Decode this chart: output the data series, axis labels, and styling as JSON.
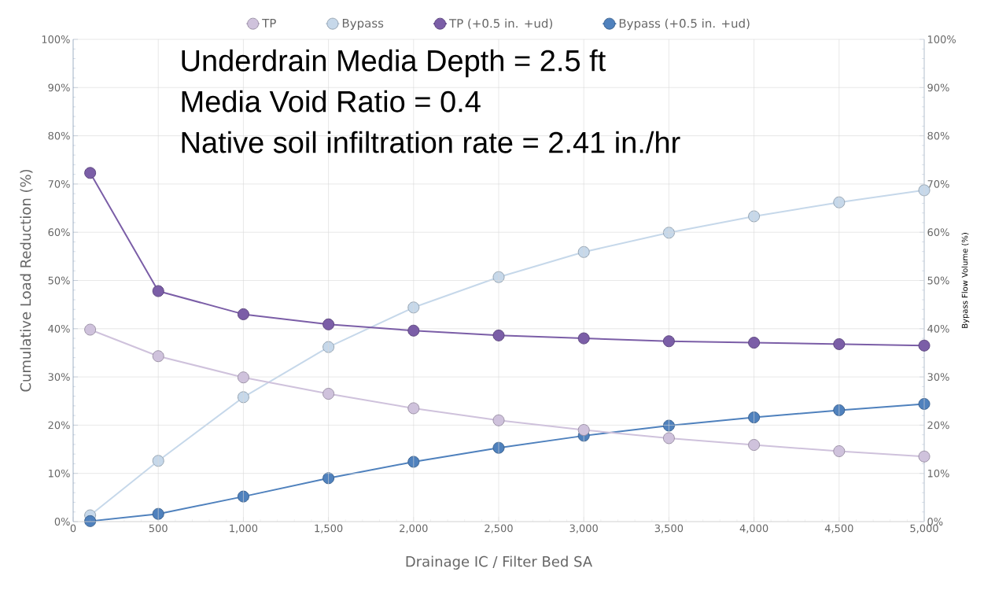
{
  "chart_data": {
    "type": "line",
    "xlabel": "Drainage IC / Filter Bed SA",
    "ylabel": "Cumulative Load Reduction (%)",
    "y2label": "Bypass Flow Volume (%)",
    "x": [
      100,
      500,
      1000,
      1500,
      2000,
      2500,
      3000,
      3500,
      4000,
      4500,
      5000
    ],
    "series": [
      {
        "name": "TP",
        "color": "#cfc2dc",
        "values": [
          39.8,
          34.3,
          29.9,
          26.5,
          23.5,
          21.0,
          19.0,
          17.3,
          15.9,
          14.6,
          13.5
        ]
      },
      {
        "name": "Bypass",
        "color": "#c6d8ea",
        "axis": "y2",
        "values": [
          1.3,
          12.6,
          25.8,
          36.2,
          44.4,
          50.7,
          55.9,
          59.9,
          63.3,
          66.2,
          68.7
        ]
      },
      {
        "name": "TP (+0.5 in. +ud)",
        "color": "#7b5ea7",
        "values": [
          72.3,
          47.8,
          43.0,
          40.9,
          39.6,
          38.6,
          38.0,
          37.4,
          37.1,
          36.8,
          36.5
        ]
      },
      {
        "name": "Bypass (+0.5 in. +ud)",
        "color": "#4f81bd",
        "axis": "y2",
        "values": [
          0.1,
          1.6,
          5.2,
          9.0,
          12.4,
          15.3,
          17.8,
          19.9,
          21.6,
          23.1,
          24.4
        ]
      }
    ],
    "xlim": [
      0,
      5000
    ],
    "xticks": [
      0,
      500,
      {
        "value": 1000,
        "label": "1,000"
      },
      {
        "value": 1500,
        "label": "1,500"
      },
      {
        "value": 2000,
        "label": "2,000"
      },
      {
        "value": 2500,
        "label": "2,500"
      },
      {
        "value": 3000,
        "label": "3,000"
      },
      {
        "value": 3500,
        "label": "3,500"
      },
      {
        "value": 4000,
        "label": "4,000"
      },
      {
        "value": 4500,
        "label": "4,500"
      },
      {
        "value": 5000,
        "label": "5,000"
      }
    ],
    "ylim": [
      0,
      100
    ],
    "yticks": [
      {
        "value": 0,
        "label": "0%"
      },
      {
        "value": 10,
        "label": "10%"
      },
      {
        "value": 20,
        "label": "20%"
      },
      {
        "value": 30,
        "label": "30%"
      },
      {
        "value": 40,
        "label": "40%"
      },
      {
        "value": 50,
        "label": "50%"
      },
      {
        "value": 60,
        "label": "60%"
      },
      {
        "value": 70,
        "label": "70%"
      },
      {
        "value": 80,
        "label": "80%"
      },
      {
        "value": 90,
        "label": "90%"
      },
      {
        "value": 100,
        "label": "100%"
      }
    ],
    "y2lim": [
      0,
      100
    ],
    "y2ticks": [
      {
        "value": 0,
        "label": "0%"
      },
      {
        "value": 10,
        "label": "10%"
      },
      {
        "value": 20,
        "label": "20%"
      },
      {
        "value": 30,
        "label": "30%"
      },
      {
        "value": 40,
        "label": "40%"
      },
      {
        "value": 50,
        "label": "50%"
      },
      {
        "value": 60,
        "label": "60%"
      },
      {
        "value": 70,
        "label": "70%"
      },
      {
        "value": 80,
        "label": "80%"
      },
      {
        "value": 90,
        "label": "90%"
      },
      {
        "value": 100,
        "label": "100%"
      }
    ],
    "annotations": [
      "Underdrain Media Depth = 2.5 ft",
      "Media Void Ratio = 0.4",
      "Native soil infiltration rate = 2.41 in./hr"
    ],
    "grid": true,
    "legend": "top",
    "marker": "circle",
    "line_style": "solid"
  }
}
